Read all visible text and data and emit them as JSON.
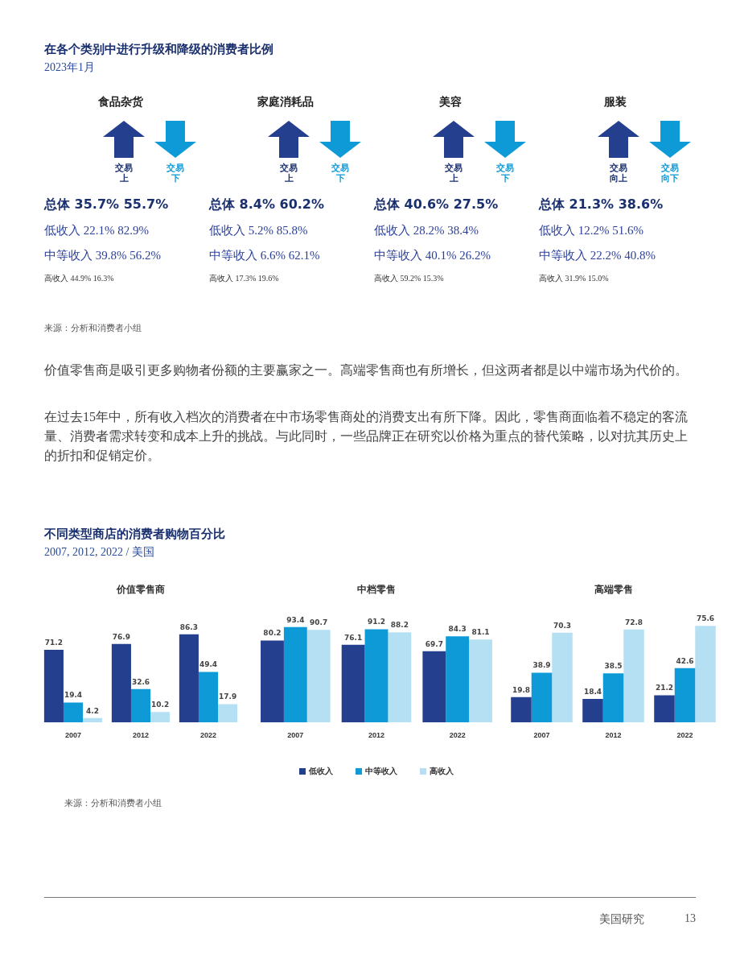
{
  "chart_data": [
    {
      "type": "other",
      "title": "在各个类别中进行升级和降级的消费者比例",
      "subtitle": "2023年1月",
      "annotations": [
        "来源：分析和消费者小组"
      ]
    },
    {
      "type": "other",
      "title": "食品杂货",
      "annotations": [
        "交易上",
        "交易下",
        "总体 35.7% 55.7%",
        "低收入 22.1% 82.9%",
        "中等收入 39.8% 56.2%",
        "高收入 44.9% 16.3%"
      ]
    },
    {
      "type": "other",
      "title": "家庭消耗品",
      "annotations": [
        "交易上",
        "交易下",
        "总体 8.4% 60.2%",
        "低收入 5.2% 85.8%",
        "中等收入 6.6% 62.1%",
        "高收入 17.3% 19.6%"
      ]
    },
    {
      "type": "other",
      "title": "美容",
      "annotations": [
        "交易上",
        "交易下",
        "总体 40.6% 27.5%",
        "低收入 28.2% 38.4%",
        "中等收入 40.1% 26.2%",
        "高收入 59.2% 15.3%"
      ]
    },
    {
      "type": "other",
      "title": "服装",
      "annotations": [
        "交易向上",
        "交易向下",
        "总体 21.3% 38.6%",
        "低收入 12.2% 51.6%",
        "中等收入 22.2% 40.8%",
        "高收入 31.9% 15.0%"
      ]
    },
    {
      "type": "other",
      "annotations": [
        "价值零售商是吸引更多购物者份额的主要赢家之一。高端零售商也有所增长，但这两者都是以中端市场为代价的。",
        "在过去15年中，所有收入档次的消费者在中市场零售商处的消费支出有所下降。因此，零售商面临着不稳定的客流量、消费者需求转变和成本上升的挑战。与此同时，一些品牌正在研究以价格为重点的替代策略，以对抗其历史上的折扣和促销定价。"
      ]
    },
    {
      "type": "other",
      "title": "不同类型商店的消费者购物百分比",
      "subtitle": "2007, 2012, 2022 / 美国",
      "annotations": [
        "来源：分析和消费者小组"
      ]
    },
    {
      "type": "bar",
      "title": "价值零售商",
      "categories": [
        "2007",
        "2012",
        "2022"
      ],
      "data_labels": true,
      "series": [
        {
          "color": "#253f8f",
          "values": [
            71.2,
            76.9,
            86.3
          ]
        },
        {
          "color": "#0e9ad7",
          "values": [
            19.4,
            32.6,
            49.4
          ]
        },
        {
          "color": "#b5e0f3",
          "values": [
            4.2,
            10.2,
            17.9
          ]
        }
      ]
    },
    {
      "type": "bar",
      "title": "中档零售",
      "categories": [
        "2007",
        "2012",
        "2022"
      ],
      "data_labels": true,
      "legend": "bottom",
      "series": [
        {
          "name": "低收入",
          "color": "#253f8f",
          "values": [
            80.2,
            76.1,
            69.7
          ]
        },
        {
          "name": "中等收入",
          "color": "#0e9ad7",
          "values": [
            93.4,
            91.2,
            84.3
          ]
        },
        {
          "name": "高收入",
          "color": "#b5e0f3",
          "values": [
            90.7,
            88.2,
            81.1
          ]
        }
      ]
    },
    {
      "type": "bar",
      "title": "高端零售",
      "categories": [
        "2007",
        "2012",
        "2022"
      ],
      "data_labels": true,
      "series": [
        {
          "color": "#253f8f",
          "values": [
            19.8,
            18.4,
            21.2
          ]
        },
        {
          "color": "#0e9ad7",
          "values": [
            38.9,
            38.5,
            42.6
          ]
        },
        {
          "color": "#b5e0f3",
          "values": [
            70.3,
            72.8,
            75.6
          ]
        }
      ]
    },
    {
      "type": "other",
      "annotations": [
        "美国研究",
        "13"
      ]
    }
  ]
}
